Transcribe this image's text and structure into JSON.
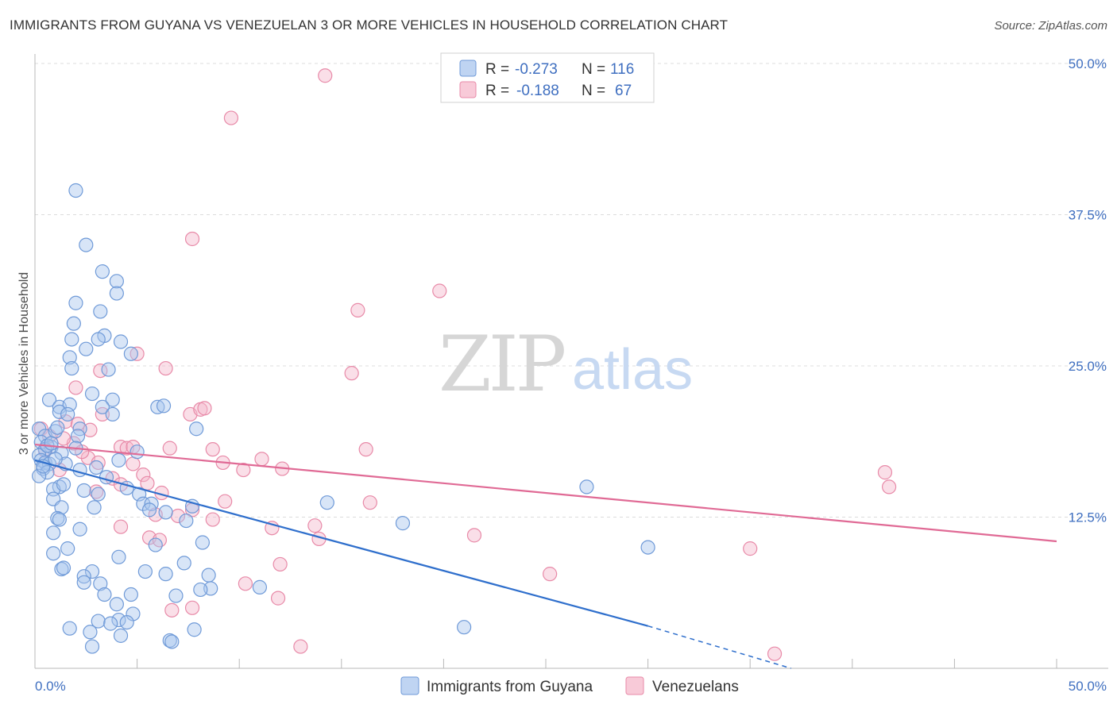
{
  "header": {
    "title": "IMMIGRANTS FROM GUYANA VS VENEZUELAN 3 OR MORE VEHICLES IN HOUSEHOLD CORRELATION CHART",
    "source": "Source: ZipAtlas.com"
  },
  "watermark": {
    "zip": "ZIP",
    "atlas": "atlas"
  },
  "colors": {
    "blue_fill": "#a9c6ee",
    "blue_stroke": "#6f9ad8",
    "blue_line": "#2f6fcc",
    "pink_fill": "#f5b8cb",
    "pink_stroke": "#e88aa8",
    "pink_line": "#e06a95",
    "tick_text": "#3f6fc0",
    "grid": "#dcdcdc"
  },
  "chart_data": {
    "type": "scatter",
    "title": "IMMIGRANTS FROM GUYANA VS VENEZUELAN 3 OR MORE VEHICLES IN HOUSEHOLD CORRELATION CHART",
    "xlabel": "",
    "ylabel": "3 or more Vehicles in Household",
    "xlim": [
      0,
      50
    ],
    "ylim": [
      0,
      50
    ],
    "x_tick_labels": [
      "0.0%",
      "50.0%"
    ],
    "y_ticks": [
      12.5,
      25.0,
      37.5,
      50.0
    ],
    "y_tick_labels": [
      "12.5%",
      "25.0%",
      "37.5%",
      "50.0%"
    ],
    "grid": true,
    "legend": [
      {
        "label": "R = ",
        "r": "-0.273",
        "n_label": "N = ",
        "n": "116"
      },
      {
        "label": "R = ",
        "r": "-0.188",
        "n_label": "N = ",
        "n": "67"
      }
    ],
    "series": [
      {
        "name": "Immigrants from Guyana",
        "points": [
          [
            2.0,
            39.5
          ],
          [
            2.5,
            35.0
          ],
          [
            3.3,
            32.8
          ],
          [
            4.0,
            32.0
          ],
          [
            4.0,
            31.0
          ],
          [
            2.0,
            30.2
          ],
          [
            3.2,
            29.5
          ],
          [
            1.9,
            28.5
          ],
          [
            3.4,
            27.5
          ],
          [
            1.8,
            27.2
          ],
          [
            3.1,
            27.2
          ],
          [
            4.2,
            27.0
          ],
          [
            2.5,
            26.4
          ],
          [
            4.7,
            26.0
          ],
          [
            1.7,
            25.7
          ],
          [
            1.8,
            24.8
          ],
          [
            3.6,
            24.7
          ],
          [
            0.7,
            22.2
          ],
          [
            1.2,
            21.6
          ],
          [
            1.7,
            21.8
          ],
          [
            2.8,
            22.7
          ],
          [
            3.8,
            22.2
          ],
          [
            3.3,
            21.6
          ],
          [
            6.0,
            21.6
          ],
          [
            6.3,
            21.7
          ],
          [
            1.2,
            21.2
          ],
          [
            1.6,
            21.0
          ],
          [
            3.8,
            21.0
          ],
          [
            0.2,
            19.8
          ],
          [
            0.5,
            19.2
          ],
          [
            1.0,
            19.6
          ],
          [
            2.2,
            19.8
          ],
          [
            2.1,
            19.2
          ],
          [
            0.3,
            18.7
          ],
          [
            0.8,
            18.3
          ],
          [
            0.5,
            18.1
          ],
          [
            1.3,
            17.8
          ],
          [
            2.0,
            18.2
          ],
          [
            7.9,
            19.8
          ],
          [
            0.2,
            17.6
          ],
          [
            0.3,
            17.2
          ],
          [
            0.5,
            17.0
          ],
          [
            0.7,
            16.9
          ],
          [
            1.5,
            16.9
          ],
          [
            3.0,
            16.6
          ],
          [
            4.1,
            17.2
          ],
          [
            5.0,
            17.9
          ],
          [
            0.4,
            16.5
          ],
          [
            0.6,
            16.2
          ],
          [
            0.2,
            15.9
          ],
          [
            1.2,
            15.0
          ],
          [
            0.9,
            14.8
          ],
          [
            2.4,
            14.7
          ],
          [
            3.1,
            14.4
          ],
          [
            5.1,
            14.4
          ],
          [
            0.9,
            14.0
          ],
          [
            1.3,
            13.3
          ],
          [
            2.9,
            13.3
          ],
          [
            5.3,
            13.6
          ],
          [
            5.7,
            13.6
          ],
          [
            5.6,
            13.1
          ],
          [
            7.7,
            13.4
          ],
          [
            7.4,
            12.2
          ],
          [
            1.1,
            12.4
          ],
          [
            1.2,
            12.3
          ],
          [
            2.2,
            11.5
          ],
          [
            0.9,
            11.2
          ],
          [
            5.9,
            10.2
          ],
          [
            8.2,
            10.4
          ],
          [
            1.6,
            9.9
          ],
          [
            0.9,
            9.5
          ],
          [
            4.1,
            9.2
          ],
          [
            1.3,
            8.2
          ],
          [
            1.4,
            8.3
          ],
          [
            2.8,
            8.0
          ],
          [
            5.4,
            8.0
          ],
          [
            6.4,
            7.8
          ],
          [
            7.3,
            8.7
          ],
          [
            8.5,
            7.7
          ],
          [
            2.4,
            7.6
          ],
          [
            2.4,
            7.1
          ],
          [
            3.2,
            7.0
          ],
          [
            8.6,
            6.6
          ],
          [
            8.1,
            6.5
          ],
          [
            3.4,
            6.1
          ],
          [
            4.7,
            6.1
          ],
          [
            6.9,
            6.0
          ],
          [
            11.0,
            6.7
          ],
          [
            4.0,
            5.3
          ],
          [
            4.8,
            4.5
          ],
          [
            4.1,
            4.0
          ],
          [
            3.1,
            3.9
          ],
          [
            3.7,
            3.7
          ],
          [
            4.5,
            3.8
          ],
          [
            1.7,
            3.3
          ],
          [
            2.7,
            3.0
          ],
          [
            4.2,
            2.7
          ],
          [
            7.8,
            3.2
          ],
          [
            6.6,
            2.3
          ],
          [
            6.7,
            2.2
          ],
          [
            2.8,
            1.8
          ],
          [
            14.3,
            13.7
          ],
          [
            18.0,
            12.0
          ],
          [
            27.0,
            15.0
          ],
          [
            30.0,
            10.0
          ],
          [
            21.0,
            3.4
          ],
          [
            0.4,
            16.7
          ],
          [
            0.6,
            18.4
          ],
          [
            1.0,
            17.3
          ],
          [
            1.4,
            15.2
          ],
          [
            2.2,
            16.4
          ],
          [
            3.5,
            15.8
          ],
          [
            4.5,
            14.9
          ],
          [
            6.4,
            12.9
          ],
          [
            0.8,
            18.6
          ],
          [
            1.1,
            19.9
          ]
        ]
      },
      {
        "name": "Venezuelans",
        "points": [
          [
            14.2,
            49.0
          ],
          [
            9.6,
            45.5
          ],
          [
            7.7,
            35.5
          ],
          [
            19.8,
            31.2
          ],
          [
            15.8,
            29.6
          ],
          [
            5.0,
            26.0
          ],
          [
            3.2,
            24.6
          ],
          [
            6.4,
            24.8
          ],
          [
            15.5,
            24.4
          ],
          [
            2.0,
            23.2
          ],
          [
            1.5,
            20.4
          ],
          [
            2.1,
            20.2
          ],
          [
            3.3,
            21.0
          ],
          [
            7.6,
            21.0
          ],
          [
            8.1,
            21.4
          ],
          [
            8.3,
            21.5
          ],
          [
            0.3,
            19.8
          ],
          [
            0.7,
            19.2
          ],
          [
            1.9,
            18.6
          ],
          [
            2.7,
            19.7
          ],
          [
            4.2,
            18.3
          ],
          [
            4.5,
            18.2
          ],
          [
            4.8,
            18.3
          ],
          [
            6.6,
            18.2
          ],
          [
            8.7,
            18.1
          ],
          [
            16.2,
            18.1
          ],
          [
            2.6,
            17.4
          ],
          [
            3.1,
            17.0
          ],
          [
            9.2,
            17.0
          ],
          [
            11.1,
            17.3
          ],
          [
            4.8,
            16.9
          ],
          [
            5.3,
            16.0
          ],
          [
            10.2,
            16.4
          ],
          [
            12.1,
            16.5
          ],
          [
            3.8,
            15.7
          ],
          [
            5.5,
            15.3
          ],
          [
            4.2,
            15.2
          ],
          [
            1.2,
            16.4
          ],
          [
            9.3,
            13.8
          ],
          [
            16.4,
            13.7
          ],
          [
            5.9,
            12.7
          ],
          [
            7.0,
            12.6
          ],
          [
            8.7,
            12.3
          ],
          [
            7.7,
            13.1
          ],
          [
            4.2,
            11.7
          ],
          [
            11.6,
            11.6
          ],
          [
            13.7,
            11.8
          ],
          [
            5.6,
            10.8
          ],
          [
            6.1,
            10.6
          ],
          [
            13.9,
            10.7
          ],
          [
            21.5,
            11.0
          ],
          [
            12.0,
            8.6
          ],
          [
            25.2,
            7.8
          ],
          [
            10.3,
            7.0
          ],
          [
            11.9,
            5.8
          ],
          [
            6.7,
            4.8
          ],
          [
            7.7,
            5.0
          ],
          [
            13.0,
            1.8
          ],
          [
            36.2,
            1.2
          ],
          [
            35.0,
            9.9
          ],
          [
            41.8,
            15.0
          ],
          [
            41.6,
            16.2
          ],
          [
            3.0,
            14.6
          ],
          [
            1.4,
            19.0
          ],
          [
            0.5,
            18.0
          ],
          [
            2.3,
            17.9
          ],
          [
            6.2,
            14.5
          ]
        ]
      }
    ],
    "trendlines": [
      {
        "series": "Immigrants from Guyana",
        "x": [
          0,
          30
        ],
        "y": [
          17.2,
          3.5
        ],
        "dashed_to": [
          37,
          0.0
        ]
      },
      {
        "series": "Venezuelans",
        "x": [
          0,
          50
        ],
        "y": [
          18.5,
          10.5
        ]
      }
    ]
  }
}
